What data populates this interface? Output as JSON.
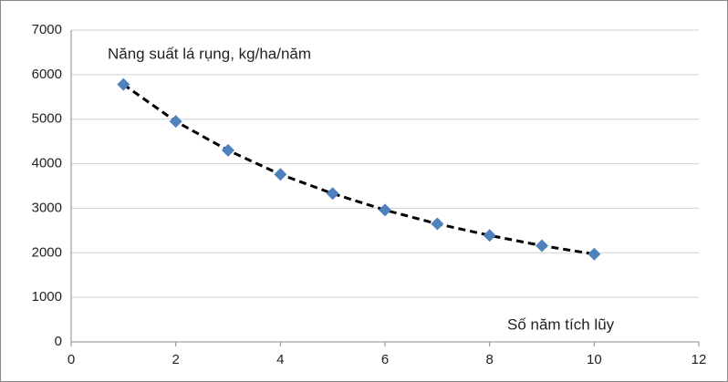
{
  "chart_data": {
    "type": "scatter",
    "y_label": "Năng suất lá rụng, kg/ha/năm",
    "x_label": "Số năm tích lũy",
    "x": [
      1,
      2,
      3,
      4,
      5,
      6,
      7,
      8,
      9,
      10
    ],
    "series": [
      {
        "color": "#4f81bd",
        "marker": "diamond",
        "line_color": "#000000",
        "line_style": "dashed",
        "values": [
          5780,
          4950,
          4300,
          3760,
          3330,
          2960,
          2650,
          2390,
          2160,
          1970
        ]
      }
    ],
    "xlim": [
      0,
      12
    ],
    "xticks": [
      0,
      2,
      4,
      6,
      8,
      10,
      12
    ],
    "ylim": [
      0,
      7000
    ],
    "yticks": [
      0,
      1000,
      2000,
      3000,
      4000,
      5000,
      6000,
      7000
    ],
    "grid": true
  }
}
